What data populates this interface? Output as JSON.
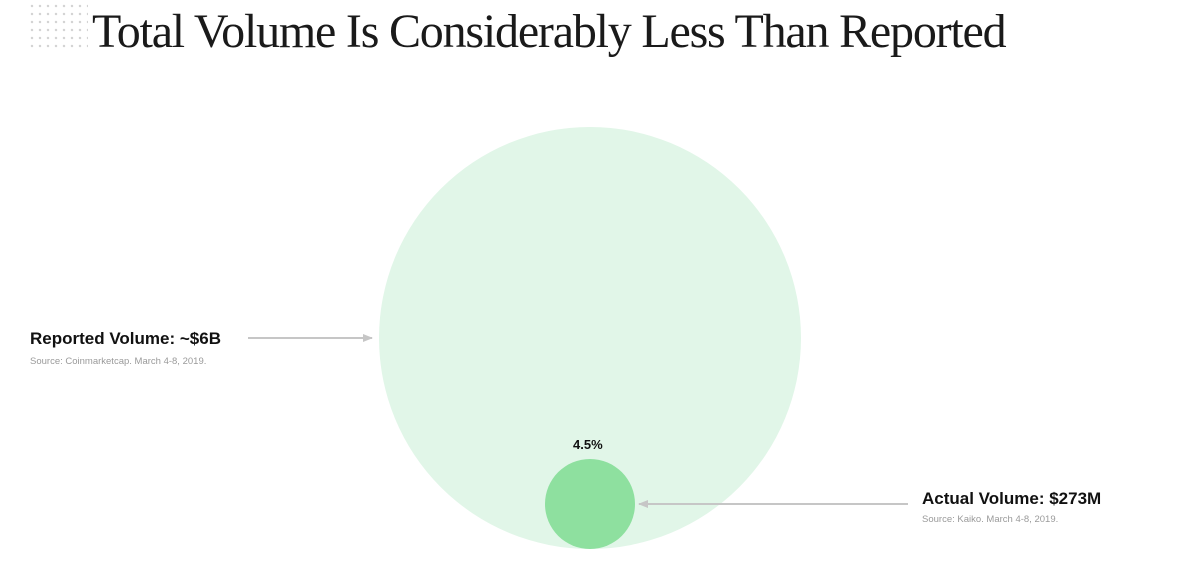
{
  "title": "Total Volume Is Considerably Less Than Reported",
  "colors": {
    "reported_fill": "#e1f6e8",
    "actual_fill": "#8ee09f",
    "arrow": "#c6c6c6",
    "text": "#111111",
    "source_text": "#9a9a9a"
  },
  "chart_data": {
    "type": "bubble",
    "title": "Total Volume Is Considerably Less Than Reported",
    "series": [
      {
        "name": "Reported Volume",
        "value": 6000000000,
        "label": "Reported Volume: ~$6B",
        "source": "Source: Coinmarketcap. March 4-8, 2019."
      },
      {
        "name": "Actual Volume",
        "value": 273000000,
        "label": "Actual Volume: $273M",
        "source": "Source: Kaiko. March 4-8, 2019.",
        "percent_label": "4.5%"
      }
    ]
  }
}
